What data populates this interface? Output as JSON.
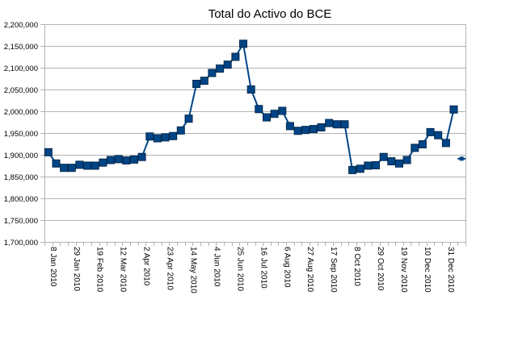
{
  "chart_data": {
    "type": "line",
    "title": "Total do Activo do BCE",
    "xlabel": "",
    "ylabel": "",
    "ylim": [
      1700000,
      2200000
    ],
    "y_ticks": [
      1700000,
      1750000,
      1800000,
      1850000,
      1900000,
      1950000,
      2000000,
      2050000,
      2100000,
      2150000,
      2200000
    ],
    "y_tick_labels": [
      "1,700,000",
      "1,750,000",
      "1,800,000",
      "1,850,000",
      "1,900,000",
      "1,950,000",
      "2,000,000",
      "2,050,000",
      "2,100,000",
      "2,150,000",
      "2,200,000"
    ],
    "x_tick_labels": [
      "8 Jan 2010",
      "29 Jan 2010",
      "19 Feb 2010",
      "12 Mar 2010",
      "2 Apr 2010",
      "23 Apr 2010",
      "14 May 2010",
      "4 Jun 2010",
      "25 Jun 2010",
      "16 Jul 2010",
      "6 Aug 2010",
      "27 Aug 2010",
      "17 Sep 2010",
      "8 Oct 2010",
      "29 Oct 2010",
      "19 Nov 2010",
      "10 Dec 2010",
      "31 Dec 2010"
    ],
    "grid": true,
    "legend": "none",
    "series": [
      {
        "name": "Total do Activo",
        "color": "#004586",
        "values": [
          1906000,
          1880000,
          1870000,
          1870000,
          1877000,
          1875000,
          1875000,
          1882000,
          1888000,
          1890000,
          1887000,
          1889000,
          1895000,
          1942000,
          1938000,
          1940000,
          1943000,
          1956000,
          1983000,
          2063000,
          2070000,
          2088000,
          2098000,
          2107000,
          2125000,
          2155000,
          2050000,
          2005000,
          1986000,
          1994000,
          2001000,
          1966000,
          1955000,
          1957000,
          1959000,
          1963000,
          1973000,
          1970000,
          1970000,
          1865000,
          1868000,
          1875000,
          1876000,
          1895000,
          1885000,
          1880000,
          1888000,
          1916000,
          1924000,
          1952000,
          1945000,
          1927000,
          2004000
        ]
      }
    ],
    "extra_points": [
      {
        "x_index": 53,
        "value": 1891000,
        "marker": "dash"
      }
    ]
  }
}
